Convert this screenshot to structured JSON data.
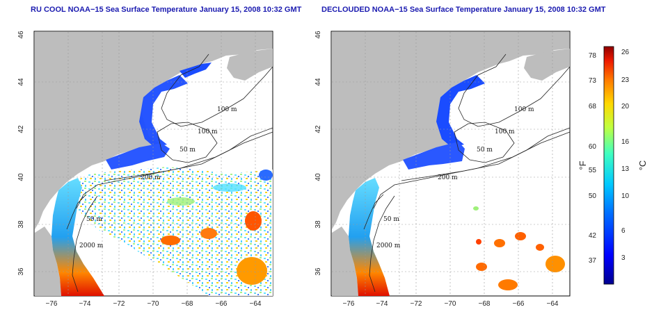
{
  "left_map": {
    "title": "RU COOL NOAA−15 Sea Surface Temperature January 15, 2008 10:32 GMT",
    "lon_ticks": [
      "−76",
      "−74",
      "−72",
      "−70",
      "−68",
      "−66",
      "−64"
    ],
    "lat_ticks": [
      "36",
      "38",
      "40",
      "42",
      "44",
      "46"
    ],
    "contour_labels": [
      "100 m",
      "100 m",
      "50 m",
      "200 m",
      "50 m",
      "2000 m"
    ]
  },
  "right_map": {
    "title": "DECLOUDED NOAA−15 Sea Surface Temperature January 15, 2008 10:32 GMT",
    "lon_ticks": [
      "−76",
      "−74",
      "−72",
      "−70",
      "−68",
      "−66",
      "−64"
    ],
    "lat_ticks": [
      "36",
      "38",
      "40",
      "42",
      "44",
      "46"
    ],
    "contour_labels": [
      "100 m",
      "100 m",
      "50 m",
      "200 m",
      "50 m",
      "2000 m"
    ]
  },
  "colorbar": {
    "fahrenheit_unit": "°F",
    "celsius_unit": "°C",
    "fahrenheit_ticks": [
      "78",
      "73",
      "68",
      "60",
      "55",
      "50",
      "42",
      "37"
    ],
    "celsius_ticks": [
      "26",
      "23",
      "20",
      "16",
      "13",
      "10",
      "6",
      "3"
    ]
  },
  "colors": {
    "land": "#bdbdbd",
    "title": "#1b1bb0",
    "grid": "#9a9a9a",
    "contour": "#222222"
  }
}
